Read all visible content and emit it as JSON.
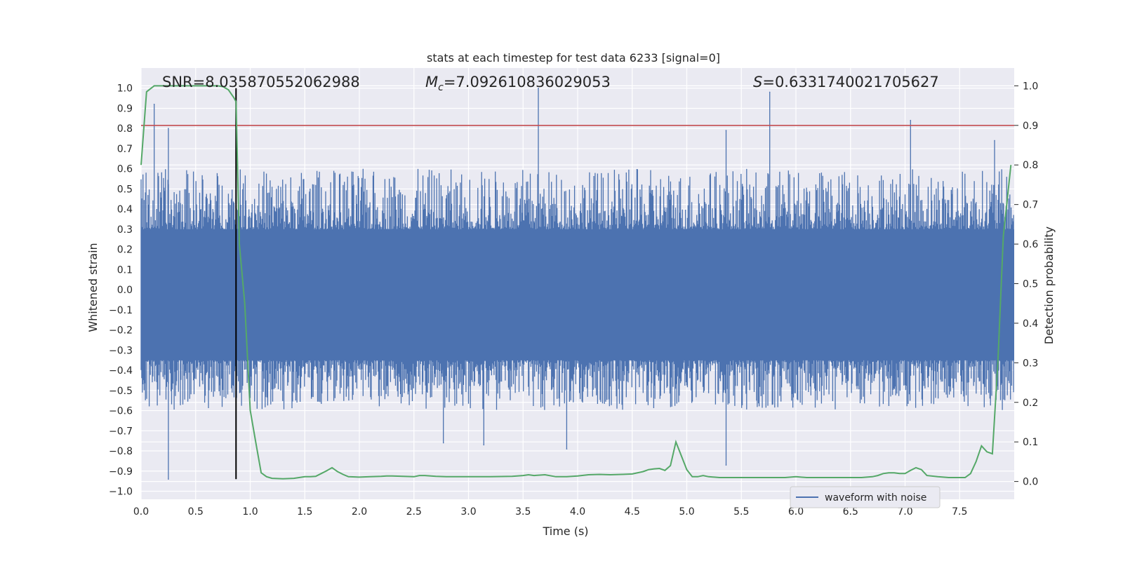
{
  "chart_data": {
    "type": "line",
    "title": "stats at each timestep for test data 6233 [signal=0]",
    "xlabel": "Time (s)",
    "ylabel_left": "Whitened strain",
    "ylabel_right": "Detection probability",
    "xlim": [
      0.0,
      8.0
    ],
    "ylim_left": [
      -1.04,
      1.1
    ],
    "ylim_right": [
      -0.045,
      1.045
    ],
    "x_ticks": [
      "0.0",
      "0.5",
      "1.0",
      "1.5",
      "2.0",
      "2.5",
      "3.0",
      "3.5",
      "4.0",
      "4.5",
      "5.0",
      "5.5",
      "6.0",
      "6.5",
      "7.0",
      "7.5"
    ],
    "y_ticks_left": [
      "1.0",
      "0.9",
      "0.8",
      "0.7",
      "0.6",
      "0.5",
      "0.4",
      "0.3",
      "0.2",
      "0.1",
      "0.0",
      "−0.1",
      "−0.2",
      "−0.3",
      "−0.4",
      "−0.5",
      "−0.6",
      "−0.7",
      "−0.8",
      "−0.9",
      "−1.0"
    ],
    "y_ticks_right": [
      "1.0",
      "0.9",
      "0.8",
      "0.7",
      "0.6",
      "0.5",
      "0.4",
      "0.3",
      "0.2",
      "0.1",
      "0.0"
    ],
    "grid": true,
    "legend_position": "lower-right",
    "annotations": {
      "snr": "SNR=8.035870552062988",
      "mc_symbol": "M",
      "mc_sub": "c",
      "mc_value": "=7.092610836029053",
      "s_symbol": "S",
      "s_value": "=0.6331740021705627"
    },
    "series": [
      {
        "name": "waveform with noise",
        "axis": "left",
        "color": "#4c72b0",
        "kind": "noise",
        "envelope": {
          "max_upper": 1.0,
          "typical_upper": 0.45,
          "dense_band": [
            -0.35,
            0.3
          ],
          "typical_lower": -0.45,
          "min_lower": -0.94
        },
        "notable_peaks": [
          {
            "x": 0.12,
            "y": 0.92
          },
          {
            "x": 0.25,
            "y": 0.8
          },
          {
            "x": 0.25,
            "y": -0.94
          },
          {
            "x": 3.64,
            "y": 1.0
          },
          {
            "x": 5.76,
            "y": 0.98
          },
          {
            "x": 5.36,
            "y": 0.79
          },
          {
            "x": 7.05,
            "y": 0.84
          },
          {
            "x": 7.82,
            "y": 0.74
          },
          {
            "x": 5.36,
            "y": -0.87
          },
          {
            "x": 3.9,
            "y": -0.79
          },
          {
            "x": 2.77,
            "y": -0.76
          },
          {
            "x": 3.14,
            "y": -0.77
          }
        ]
      },
      {
        "axis": "right",
        "color": "#55a868",
        "x": [
          0.0,
          0.05,
          0.12,
          0.2,
          0.3,
          0.4,
          0.5,
          0.6,
          0.7,
          0.75,
          0.8,
          0.85,
          0.87,
          0.9,
          0.95,
          1.0,
          1.05,
          1.1,
          1.15,
          1.2,
          1.3,
          1.4,
          1.5,
          1.55,
          1.6,
          1.65,
          1.7,
          1.75,
          1.8,
          1.85,
          1.9,
          2.0,
          2.1,
          2.2,
          2.25,
          2.3,
          2.4,
          2.5,
          2.55,
          2.6,
          2.7,
          2.8,
          3.0,
          3.2,
          3.4,
          3.5,
          3.55,
          3.6,
          3.7,
          3.8,
          3.9,
          4.0,
          4.1,
          4.2,
          4.3,
          4.4,
          4.5,
          4.6,
          4.65,
          4.7,
          4.75,
          4.8,
          4.85,
          4.9,
          4.95,
          5.0,
          5.05,
          5.1,
          5.15,
          5.2,
          5.3,
          5.4,
          5.5,
          5.7,
          5.9,
          6.0,
          6.1,
          6.3,
          6.5,
          6.6,
          6.7,
          6.75,
          6.8,
          6.85,
          6.9,
          6.95,
          7.0,
          7.05,
          7.1,
          7.15,
          7.2,
          7.3,
          7.4,
          7.5,
          7.55,
          7.6,
          7.65,
          7.7,
          7.75,
          7.8,
          7.85,
          7.9,
          7.97
        ],
        "values": [
          0.8,
          0.985,
          1.0,
          1.0,
          1.0,
          1.0,
          1.0,
          1.0,
          1.0,
          0.998,
          0.99,
          0.97,
          0.96,
          0.6,
          0.45,
          0.18,
          0.1,
          0.022,
          0.012,
          0.008,
          0.007,
          0.008,
          0.012,
          0.012,
          0.013,
          0.02,
          0.027,
          0.035,
          0.025,
          0.018,
          0.012,
          0.011,
          0.012,
          0.013,
          0.014,
          0.014,
          0.013,
          0.012,
          0.015,
          0.015,
          0.013,
          0.012,
          0.012,
          0.012,
          0.013,
          0.015,
          0.017,
          0.015,
          0.017,
          0.012,
          0.012,
          0.014,
          0.017,
          0.018,
          0.017,
          0.018,
          0.019,
          0.025,
          0.03,
          0.032,
          0.033,
          0.028,
          0.04,
          0.1,
          0.065,
          0.03,
          0.012,
          0.012,
          0.015,
          0.012,
          0.01,
          0.01,
          0.01,
          0.01,
          0.01,
          0.012,
          0.01,
          0.01,
          0.01,
          0.01,
          0.012,
          0.015,
          0.02,
          0.022,
          0.022,
          0.02,
          0.02,
          0.028,
          0.035,
          0.03,
          0.015,
          0.012,
          0.01,
          0.01,
          0.01,
          0.02,
          0.05,
          0.09,
          0.075,
          0.07,
          0.3,
          0.62,
          0.8
        ]
      },
      {
        "axis": "right",
        "color": "#c44e52",
        "kind": "hline",
        "y": 0.9
      },
      {
        "axis": "left",
        "color": "#000000",
        "kind": "vline",
        "x": 0.87,
        "y_range": [
          -0.94,
          1.0
        ]
      }
    ]
  }
}
